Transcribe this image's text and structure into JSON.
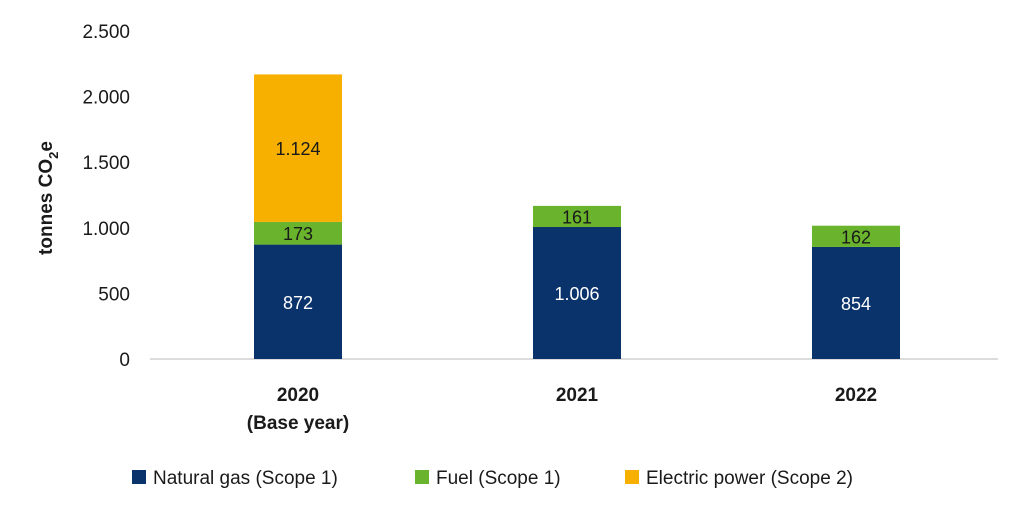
{
  "chart_data": {
    "type": "bar",
    "stacked": true,
    "categories": [
      [
        "2020",
        "(Base year)"
      ],
      [
        "2021"
      ],
      [
        "2022"
      ]
    ],
    "series": [
      {
        "name": "Natural gas (Scope 1)",
        "values": [
          872,
          1006,
          854
        ],
        "color": "#0a326b",
        "label_color": "#ffffff"
      },
      {
        "name": "Fuel (Scope 1)",
        "values": [
          173,
          161,
          162
        ],
        "color": "#6ab42d",
        "label_color": "#1a1a1a"
      },
      {
        "name": "Electric power (Scope 2)",
        "values": [
          1124,
          null,
          null
        ],
        "color": "#f7b000",
        "label_color": "#1a1a1a"
      }
    ],
    "data_labels": [
      [
        "872",
        "1.006",
        "854"
      ],
      [
        "173",
        "161",
        "162"
      ],
      [
        "1.124",
        "",
        ""
      ]
    ],
    "ylabel": {
      "text": "tonnes CO",
      "subscript": "2",
      "suffix": "e"
    },
    "ylim": [
      0,
      2500
    ],
    "yticks": [
      0,
      500,
      1000,
      1500,
      2000,
      2500
    ],
    "ytick_labels": [
      "0",
      "500",
      "1.000",
      "1.500",
      "2.000",
      "2.500"
    ],
    "grid": false,
    "legend_position": "bottom"
  }
}
